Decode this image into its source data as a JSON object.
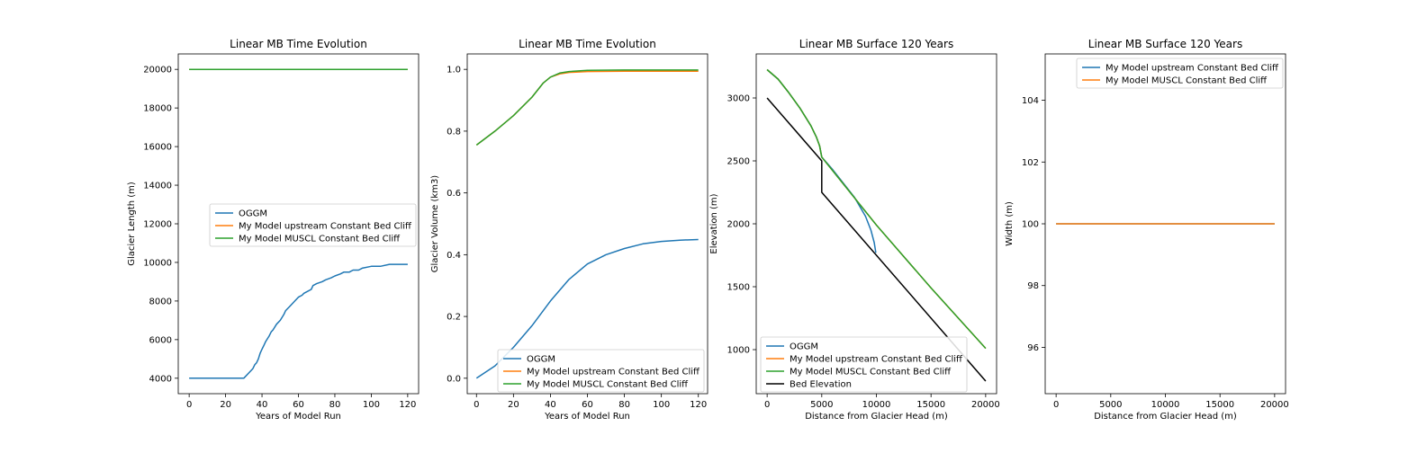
{
  "colors": {
    "blue": "#1f77b4",
    "orange": "#ff7f0e",
    "green": "#2ca02c",
    "black": "#000000"
  },
  "chart_data": [
    {
      "type": "line",
      "title": "Linear MB Time Evolution",
      "xlabel": "Years of Model Run",
      "ylabel": "Glacier Length (m)",
      "xlim": [
        -6,
        126
      ],
      "ylim": [
        3200,
        20800
      ],
      "xticks": [
        0,
        20,
        40,
        60,
        80,
        100,
        120
      ],
      "yticks": [
        4000,
        6000,
        8000,
        10000,
        12000,
        14000,
        16000,
        18000,
        20000
      ],
      "legend_position": "center-right",
      "series": [
        {
          "name": "OGGM",
          "color": "#1f77b4",
          "x": [
            0,
            30,
            33,
            35,
            36,
            37,
            38,
            39,
            40,
            41,
            42,
            44,
            45,
            46,
            48,
            50,
            52,
            53,
            55,
            57,
            58,
            60,
            62,
            63,
            65,
            67,
            68,
            70,
            73,
            75,
            78,
            80,
            83,
            85,
            88,
            90,
            93,
            95,
            100,
            105,
            110,
            115,
            120
          ],
          "y": [
            4000,
            4000,
            4300,
            4500,
            4700,
            4800,
            5000,
            5300,
            5500,
            5700,
            5900,
            6200,
            6400,
            6500,
            6800,
            7000,
            7300,
            7500,
            7700,
            7900,
            8000,
            8200,
            8300,
            8400,
            8500,
            8600,
            8800,
            8900,
            9000,
            9100,
            9200,
            9300,
            9400,
            9500,
            9500,
            9600,
            9600,
            9700,
            9800,
            9800,
            9900,
            9900,
            9900
          ]
        },
        {
          "name": "My Model upstream Constant Bed Cliff",
          "color": "#ff7f0e",
          "x": [
            0,
            120
          ],
          "y": [
            20000,
            20000
          ]
        },
        {
          "name": "My Model MUSCL Constant Bed Cliff",
          "color": "#2ca02c",
          "x": [
            0,
            120
          ],
          "y": [
            20000,
            20000
          ]
        }
      ]
    },
    {
      "type": "line",
      "title": "Linear MB Time Evolution",
      "xlabel": "Years of Model Run",
      "ylabel": "Glacier Volume (km3)",
      "xlim": [
        -5,
        125
      ],
      "ylim": [
        -0.05,
        1.05
      ],
      "xticks": [
        0,
        20,
        40,
        60,
        80,
        100,
        120
      ],
      "yticks": [
        0.0,
        0.2,
        0.4,
        0.6,
        0.8,
        1.0
      ],
      "legend_position": "lower-right",
      "series": [
        {
          "name": "OGGM",
          "color": "#1f77b4",
          "x": [
            0,
            10,
            20,
            30,
            40,
            50,
            60,
            70,
            80,
            90,
            100,
            110,
            120
          ],
          "y": [
            0.0,
            0.04,
            0.1,
            0.17,
            0.25,
            0.32,
            0.37,
            0.4,
            0.42,
            0.435,
            0.443,
            0.447,
            0.449
          ]
        },
        {
          "name": "My Model upstream Constant Bed Cliff",
          "color": "#ff7f0e",
          "x": [
            0,
            10,
            20,
            30,
            36,
            40,
            45,
            50,
            60,
            80,
            100,
            120
          ],
          "y": [
            0.755,
            0.8,
            0.85,
            0.91,
            0.955,
            0.975,
            0.985,
            0.99,
            0.993,
            0.994,
            0.994,
            0.994
          ]
        },
        {
          "name": "My Model MUSCL Constant Bed Cliff",
          "color": "#2ca02c",
          "x": [
            0,
            10,
            20,
            30,
            36,
            40,
            45,
            50,
            60,
            80,
            100,
            120
          ],
          "y": [
            0.755,
            0.8,
            0.85,
            0.91,
            0.955,
            0.975,
            0.988,
            0.993,
            0.997,
            0.998,
            0.998,
            0.998
          ]
        }
      ]
    },
    {
      "type": "line",
      "title": "Linear MB Surface 120 Years",
      "xlabel": "Distance from Glacier Head (m)",
      "ylabel": "Elevation (m)",
      "xlim": [
        -1000,
        21000
      ],
      "ylim": [
        650,
        3350
      ],
      "xticks": [
        0,
        5000,
        10000,
        15000,
        20000
      ],
      "yticks": [
        1000,
        1500,
        2000,
        2500,
        3000
      ],
      "legend_position": "lower-left",
      "series": [
        {
          "name": "OGGM",
          "color": "#1f77b4",
          "x": [
            0,
            1000,
            2000,
            3000,
            4000,
            4500,
            4800,
            5000,
            5500,
            6000,
            7000,
            8000,
            9000,
            9500,
            9800,
            9950
          ],
          "y": [
            3225,
            3150,
            3040,
            2920,
            2780,
            2690,
            2620,
            2530,
            2480,
            2430,
            2320,
            2210,
            2060,
            1950,
            1850,
            1770
          ]
        },
        {
          "name": "My Model upstream Constant Bed Cliff",
          "color": "#ff7f0e",
          "x": [
            0,
            1000,
            2000,
            3000,
            4000,
            4500,
            4800,
            5000,
            10000,
            15000,
            20000
          ],
          "y": [
            3225,
            3150,
            3040,
            2920,
            2780,
            2690,
            2620,
            2530,
            1990,
            1490,
            1010
          ]
        },
        {
          "name": "My Model MUSCL Constant Bed Cliff",
          "color": "#2ca02c",
          "x": [
            0,
            1000,
            2000,
            3000,
            4000,
            4500,
            4800,
            5000,
            10000,
            15000,
            20000
          ],
          "y": [
            3225,
            3150,
            3040,
            2920,
            2780,
            2690,
            2620,
            2530,
            1990,
            1490,
            1010
          ]
        },
        {
          "name": "Bed Elevation",
          "color": "#000000",
          "x": [
            0,
            5000,
            5000,
            20000
          ],
          "y": [
            3000,
            2500,
            2250,
            750
          ]
        }
      ]
    },
    {
      "type": "line",
      "title": "Linear MB Surface 120 Years",
      "xlabel": "Distance from Glacier Head (m)",
      "ylabel": "Width (m)",
      "xlim": [
        -1000,
        21000
      ],
      "ylim": [
        94.5,
        105.5
      ],
      "xticks": [
        0,
        5000,
        10000,
        15000,
        20000
      ],
      "yticks": [
        96,
        98,
        100,
        102,
        104
      ],
      "legend_position": "upper-right",
      "series": [
        {
          "name": "My Model upstream Constant Bed Cliff",
          "color": "#1f77b4",
          "x": [
            0,
            20000
          ],
          "y": [
            100,
            100
          ]
        },
        {
          "name": "My Model MUSCL Constant Bed Cliff",
          "color": "#ff7f0e",
          "x": [
            0,
            20000
          ],
          "y": [
            100,
            100
          ]
        }
      ]
    }
  ]
}
